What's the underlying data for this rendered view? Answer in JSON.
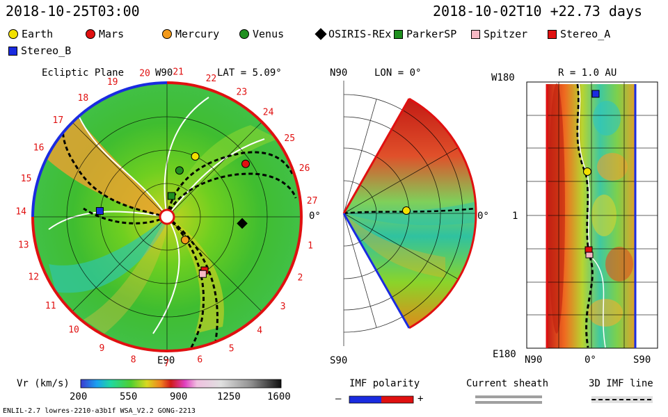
{
  "header": {
    "model_time": "2018-10-25T03:00",
    "run_time": "2018-10-02T10 +22.73 days"
  },
  "legend": [
    {
      "name": "Earth",
      "shape": "circle",
      "color": "#f2e100"
    },
    {
      "name": "Mars",
      "shape": "circle",
      "color": "#e01010"
    },
    {
      "name": "Mercury",
      "shape": "circle",
      "color": "#f39a1a"
    },
    {
      "name": "Venus",
      "shape": "circle",
      "color": "#1f8f1f"
    },
    {
      "name": "OSIRIS-REx",
      "shape": "diamond",
      "color": "#000000"
    },
    {
      "name": "ParkerSP",
      "shape": "square",
      "color": "#1f8f1f"
    },
    {
      "name": "Spitzer",
      "shape": "square",
      "color": "#f6b8c4"
    },
    {
      "name": "Stereo_A",
      "shape": "square",
      "color": "#e01010"
    },
    {
      "name": "Stereo_B",
      "shape": "square",
      "color": "#1a2be0"
    }
  ],
  "panels": {
    "ecliptic": {
      "title": "Ecliptic Plane",
      "lat_label": "LAT = 5.09°",
      "top_label": "W90",
      "bottom_label": "E90",
      "right_label": "0°",
      "rotation_numbers": [
        "1",
        "2",
        "3",
        "4",
        "5",
        "6",
        "7",
        "8",
        "9",
        "10",
        "11",
        "12",
        "13",
        "14",
        "15",
        "16",
        "17",
        "18",
        "19",
        "20",
        "21",
        "22",
        "23",
        "24",
        "25",
        "26",
        "27"
      ]
    },
    "meridional": {
      "lon_label": "LON = 0°",
      "top_label": "N90",
      "bottom_label": "S90",
      "right_label": "0°"
    },
    "radial": {
      "r_label": "R = 1.0 AU",
      "top_label": "W180",
      "mid_label": "1",
      "bottom_label": "E180",
      "x_labels": [
        "N90",
        "0°",
        "S90"
      ]
    }
  },
  "chart_data": {
    "type": "heatmap",
    "variable": "Vr (km/s)",
    "colorbar": {
      "label": "Vr (km/s)",
      "ticks": [
        "200",
        "550",
        "900",
        "1250",
        "1600"
      ],
      "range": [
        200,
        1600
      ]
    },
    "bodies_ecliptic": [
      {
        "name": "Earth",
        "r_au": 1.0,
        "lon_deg": 65
      },
      {
        "name": "Mars",
        "r_au": 1.42,
        "lon_deg": 34
      },
      {
        "name": "Mercury",
        "r_au": 0.44,
        "lon_deg": -52
      },
      {
        "name": "Venus",
        "r_au": 0.72,
        "lon_deg": 75
      },
      {
        "name": "OSIRIS-REx",
        "r_au": 1.13,
        "lon_deg": -5
      },
      {
        "name": "ParkerSP",
        "r_au": 0.32,
        "lon_deg": 78
      },
      {
        "name": "Stereo_A",
        "r_au": 0.98,
        "lon_deg": -55
      },
      {
        "name": "Spitzer",
        "r_au": 1.01,
        "lon_deg": -58
      },
      {
        "name": "Stereo_B",
        "r_au": 1.01,
        "lon_deg": 175
      }
    ]
  },
  "footer": {
    "imf_title": "IMF polarity",
    "imf_minus": "–",
    "imf_plus": "+",
    "sheath_title": "Current sheath",
    "imf3d_title": "3D IMF line",
    "model_info": "ENLIL-2.7 lowres-2210-a3b1f WSA_V2.2 GONG-2213"
  }
}
